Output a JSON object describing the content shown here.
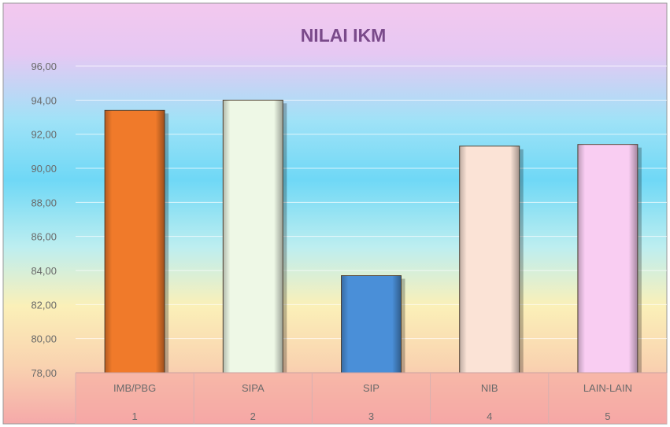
{
  "chart_data": {
    "type": "bar",
    "title": "NILAI IKM",
    "categories": [
      "IMB/PBG",
      "SIPA",
      "SIP",
      "NIB",
      "LAIN-LAIN"
    ],
    "category_numbers": [
      "1",
      "2",
      "3",
      "4",
      "5"
    ],
    "values": [
      93.4,
      94.0,
      83.7,
      91.3,
      91.4
    ],
    "ylim": [
      78,
      96
    ],
    "yticks": [
      "78,00",
      "80,00",
      "82,00",
      "84,00",
      "86,00",
      "88,00",
      "90,00",
      "92,00",
      "94,00",
      "96,00"
    ],
    "grid": true,
    "legend": "none",
    "bar_colors": [
      "#f07a2a",
      "#eef8e6",
      "#4a8fd8",
      "#fbe3d6",
      "#f9cdf2"
    ]
  }
}
